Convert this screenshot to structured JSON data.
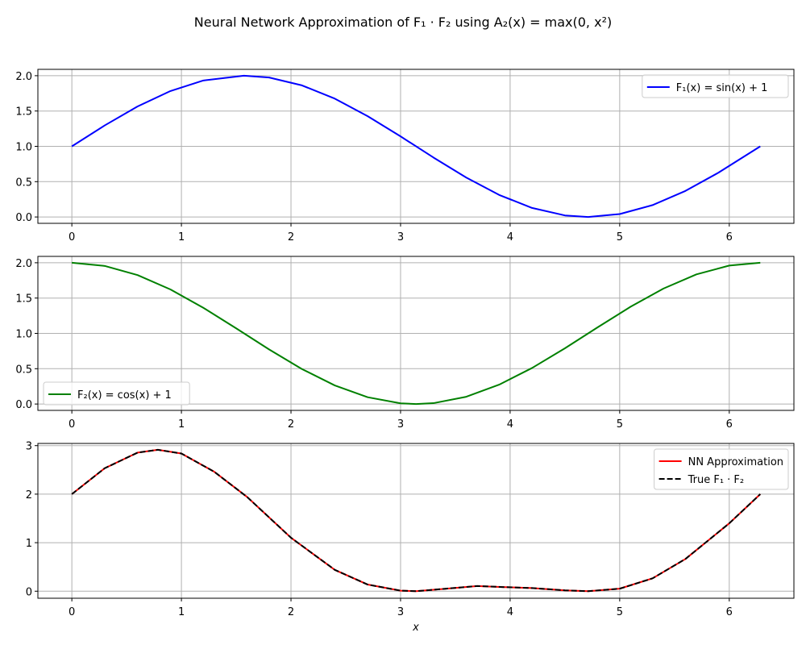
{
  "figure": {
    "title": "Neural Network Approximation of F₁ · F₂ using A₂(x) = max(0, x²)"
  },
  "chart_data": [
    {
      "type": "line",
      "title": "",
      "xlabel": "",
      "ylabel": "",
      "xlim": [
        -0.31,
        6.59
      ],
      "ylim": [
        -0.09,
        2.09
      ],
      "xticks": [
        0,
        1,
        2,
        3,
        4,
        5,
        6
      ],
      "yticks": [
        0.0,
        0.5,
        1.0,
        1.5,
        2.0
      ],
      "ytick_format": "%.1f",
      "grid": true,
      "legend": "upper-right",
      "series": [
        {
          "name": "F₁(x) = sin(x) + 1",
          "color": "#0000ff",
          "dash": "solid",
          "x": [
            0,
            0.3,
            0.6,
            0.9,
            1.2,
            1.5708,
            1.8,
            2.1,
            2.4,
            2.7,
            3.0,
            3.3,
            3.6,
            3.9,
            4.2,
            4.5,
            4.7124,
            5.0,
            5.3,
            5.6,
            5.9,
            6.2832
          ],
          "y": [
            1.0,
            1.296,
            1.565,
            1.783,
            1.932,
            2.0,
            1.974,
            1.863,
            1.675,
            1.427,
            1.141,
            0.842,
            0.558,
            0.312,
            0.128,
            0.022,
            0.0,
            0.041,
            0.168,
            0.369,
            0.626,
            1.0
          ]
        }
      ]
    },
    {
      "type": "line",
      "title": "",
      "xlabel": "",
      "ylabel": "",
      "xlim": [
        -0.31,
        6.59
      ],
      "ylim": [
        -0.09,
        2.09
      ],
      "xticks": [
        0,
        1,
        2,
        3,
        4,
        5,
        6
      ],
      "yticks": [
        0.0,
        0.5,
        1.0,
        1.5,
        2.0
      ],
      "ytick_format": "%.1f",
      "grid": true,
      "legend": "lower-left",
      "series": [
        {
          "name": "F₂(x) = cos(x) + 1",
          "color": "#008000",
          "dash": "solid",
          "x": [
            0,
            0.3,
            0.6,
            0.9,
            1.2,
            1.5,
            1.8,
            2.1,
            2.4,
            2.7,
            3.0,
            3.1416,
            3.3,
            3.6,
            3.9,
            4.2,
            4.5,
            4.8,
            5.1,
            5.4,
            5.7,
            6.0,
            6.2832
          ],
          "y": [
            2.0,
            1.955,
            1.825,
            1.622,
            1.362,
            1.071,
            0.773,
            0.495,
            0.263,
            0.096,
            0.01,
            0.0,
            0.012,
            0.103,
            0.274,
            0.51,
            0.789,
            1.087,
            1.378,
            1.635,
            1.835,
            1.96,
            2.0
          ]
        }
      ]
    },
    {
      "type": "line",
      "title": "",
      "xlabel": "x",
      "ylabel": "",
      "xlim": [
        -0.31,
        6.59
      ],
      "ylim": [
        -0.145,
        3.045
      ],
      "xticks": [
        0,
        1,
        2,
        3,
        4,
        5,
        6
      ],
      "yticks": [
        0,
        1,
        2,
        3
      ],
      "ytick_format": "%d",
      "grid": true,
      "legend": "upper-right",
      "series": [
        {
          "name": "NN Approximation",
          "color": "#ff0000",
          "dash": "solid",
          "x": [
            0,
            0.3,
            0.6,
            0.7854,
            1.0,
            1.3,
            1.6,
            2.0,
            2.4,
            2.7,
            3.0,
            3.1416,
            3.4,
            3.7,
            3.927,
            4.2,
            4.5,
            4.7124,
            5.0,
            5.3,
            5.6,
            6.0,
            6.2832
          ],
          "y": [
            2.0,
            2.534,
            2.856,
            2.914,
            2.837,
            2.461,
            1.941,
            1.102,
            0.44,
            0.137,
            0.011,
            0.0,
            0.049,
            0.107,
            0.086,
            0.065,
            0.018,
            0.0,
            0.052,
            0.265,
            0.664,
            1.399,
            2.0
          ]
        },
        {
          "name": "True F₁ · F₂",
          "color": "#000000",
          "dash": "dashed",
          "x": [
            0,
            0.3,
            0.6,
            0.7854,
            1.0,
            1.3,
            1.6,
            2.0,
            2.4,
            2.7,
            3.0,
            3.1416,
            3.4,
            3.7,
            3.927,
            4.2,
            4.5,
            4.7124,
            5.0,
            5.3,
            5.6,
            6.0,
            6.2832
          ],
          "y": [
            2.0,
            2.534,
            2.856,
            2.914,
            2.837,
            2.461,
            1.941,
            1.102,
            0.44,
            0.137,
            0.011,
            0.0,
            0.049,
            0.107,
            0.086,
            0.065,
            0.018,
            0.0,
            0.052,
            0.265,
            0.664,
            1.399,
            2.0
          ]
        }
      ]
    }
  ]
}
